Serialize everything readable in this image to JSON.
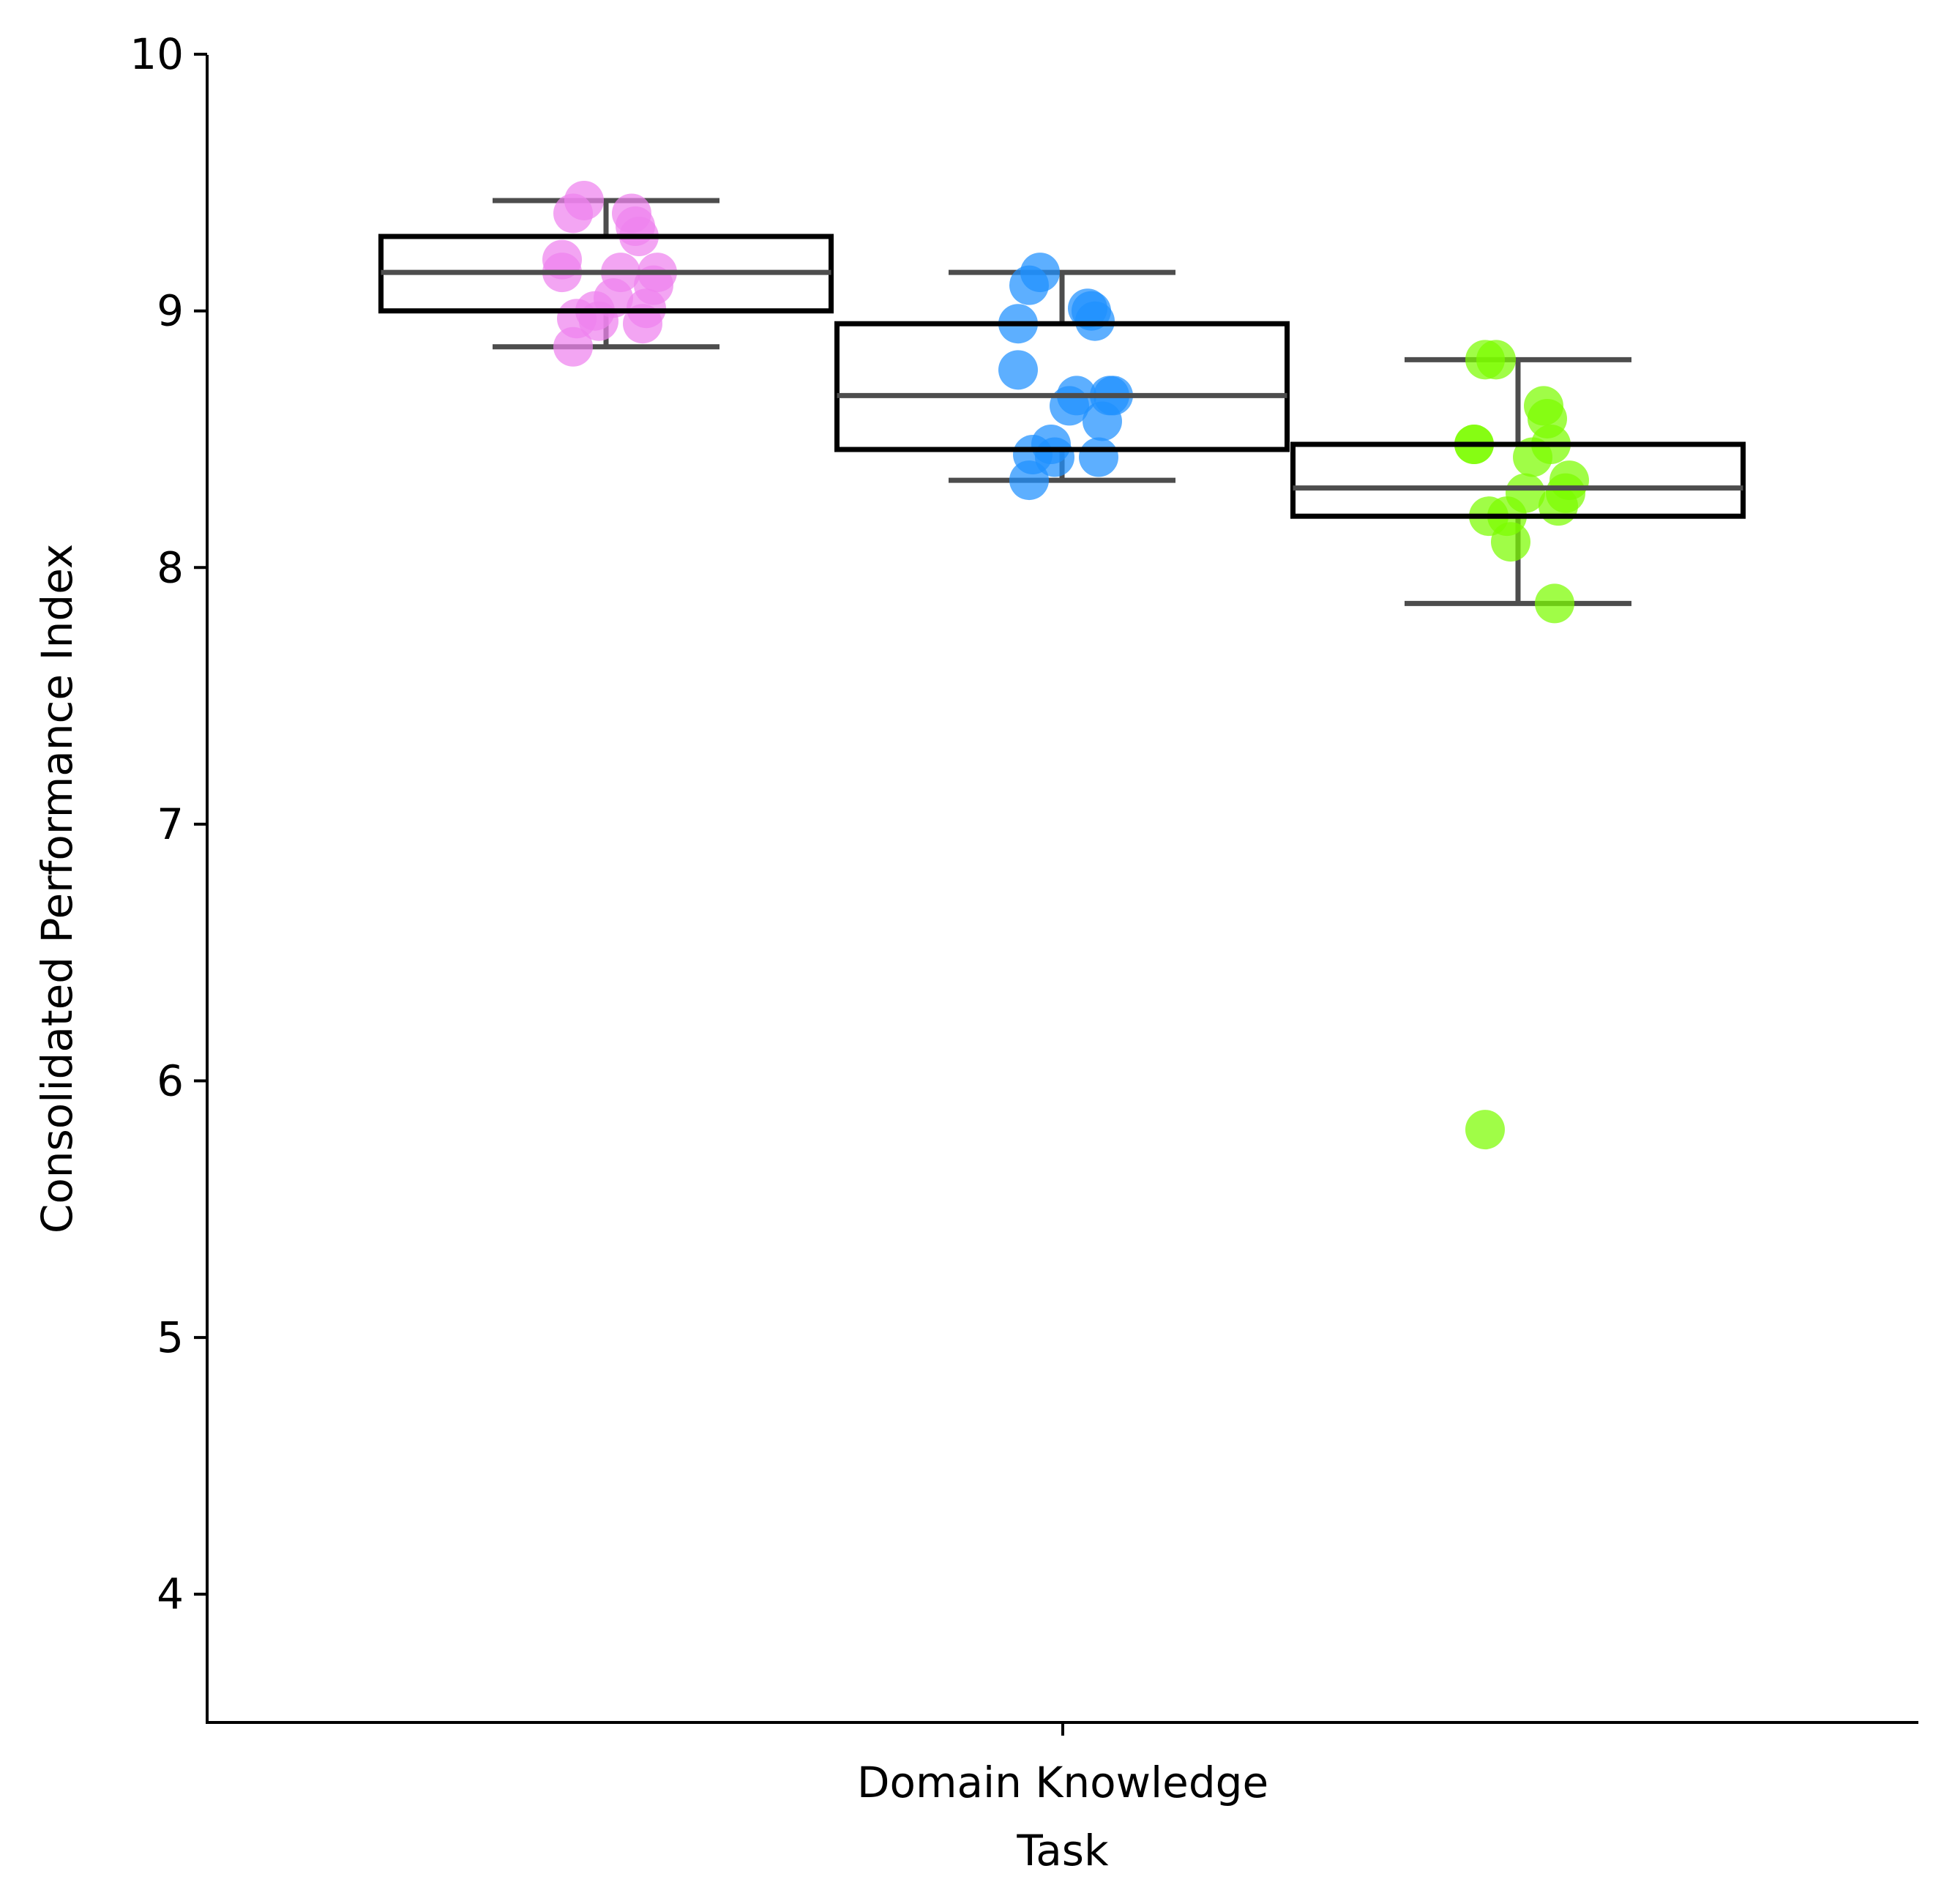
{
  "chart_data": {
    "type": "box",
    "xlabel": "Task",
    "ylabel": "Consolidated Performance Index",
    "ylim": [
      3.5,
      10
    ],
    "yticks": [
      4,
      5,
      6,
      7,
      8,
      9,
      10
    ],
    "categories": [
      "Domain Knowledge"
    ],
    "legend": "none",
    "grid": false,
    "series": [
      {
        "color": "#ee82ee",
        "q1": 9.0,
        "median": 9.15,
        "q3": 9.29,
        "whisker_low": 8.86,
        "whisker_high": 9.43,
        "points": [
          9.43,
          9.38,
          9.38,
          9.33,
          9.29,
          9.2,
          9.15,
          9.15,
          9.15,
          9.1,
          9.05,
          9.01,
          9.0,
          8.97,
          8.96,
          8.95,
          8.86
        ]
      },
      {
        "color": "#1e90ff",
        "q1": 8.46,
        "median": 8.67,
        "q3": 8.95,
        "whisker_low": 8.34,
        "whisker_high": 9.15,
        "points": [
          9.15,
          9.1,
          9.01,
          9.0,
          8.96,
          8.95,
          8.77,
          8.67,
          8.67,
          8.67,
          8.63,
          8.57,
          8.48,
          8.44,
          8.43,
          8.43,
          8.34
        ]
      },
      {
        "color": "#7cfc00",
        "q1": 8.2,
        "median": 8.31,
        "q3": 8.48,
        "whisker_low": 7.86,
        "whisker_high": 8.81,
        "points": [
          8.81,
          8.81,
          8.63,
          8.58,
          8.48,
          8.48,
          8.48,
          8.43,
          8.34,
          8.29,
          8.29,
          8.24,
          8.2,
          8.2,
          8.1,
          7.86,
          5.81
        ]
      }
    ]
  }
}
